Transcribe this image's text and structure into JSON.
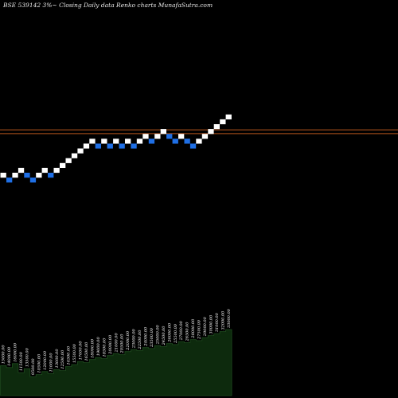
{
  "chart_data": {
    "type": "renko",
    "title": "BSE 539142  3%~  Closing Daily data  Renko  charts MunafaSutra.com",
    "colors": {
      "background": "#000000",
      "up_brick": "#ffffff",
      "down_brick": "#1f6fe5",
      "reference_line": "#b5541c",
      "volume_fill": "#0d2a0d",
      "volume_stroke": "#1e4a1e",
      "volume_label": "#ffffff"
    },
    "reference_lines": [
      {
        "level": 9.34
      },
      {
        "level": 8.57
      }
    ],
    "bricks": [
      {
        "dir": "up",
        "level": 0
      },
      {
        "dir": "down",
        "level": -1
      },
      {
        "dir": "up",
        "level": 0
      },
      {
        "dir": "up",
        "level": 1
      },
      {
        "dir": "down",
        "level": 0
      },
      {
        "dir": "down",
        "level": -1
      },
      {
        "dir": "up",
        "level": 0
      },
      {
        "dir": "up",
        "level": 1
      },
      {
        "dir": "down",
        "level": 0
      },
      {
        "dir": "up",
        "level": 1
      },
      {
        "dir": "up",
        "level": 2
      },
      {
        "dir": "up",
        "level": 3
      },
      {
        "dir": "up",
        "level": 4
      },
      {
        "dir": "up",
        "level": 5
      },
      {
        "dir": "up",
        "level": 6
      },
      {
        "dir": "up",
        "level": 7
      },
      {
        "dir": "down",
        "level": 6
      },
      {
        "dir": "up",
        "level": 7
      },
      {
        "dir": "down",
        "level": 6
      },
      {
        "dir": "up",
        "level": 7
      },
      {
        "dir": "down",
        "level": 6
      },
      {
        "dir": "up",
        "level": 7
      },
      {
        "dir": "down",
        "level": 6
      },
      {
        "dir": "up",
        "level": 7
      },
      {
        "dir": "up",
        "level": 8
      },
      {
        "dir": "down",
        "level": 7
      },
      {
        "dir": "up",
        "level": 8
      },
      {
        "dir": "up",
        "level": 9
      },
      {
        "dir": "down",
        "level": 8
      },
      {
        "dir": "down",
        "level": 7
      },
      {
        "dir": "up",
        "level": 8
      },
      {
        "dir": "down",
        "level": 7
      },
      {
        "dir": "down",
        "level": 6
      },
      {
        "dir": "up",
        "level": 7
      },
      {
        "dir": "up",
        "level": 8
      },
      {
        "dir": "up",
        "level": 9
      },
      {
        "dir": "up",
        "level": 10
      },
      {
        "dir": "up",
        "level": 11
      },
      {
        "dir": "up",
        "level": 12
      }
    ],
    "volume": [
      {
        "value": 15000,
        "label": "15000.00"
      },
      {
        "value": 14000,
        "label": "14000.00"
      },
      {
        "value": 16000,
        "label": "16000.00"
      },
      {
        "value": 11500,
        "label": "11500.00"
      },
      {
        "value": 13500,
        "label": "13500.00"
      },
      {
        "value": 9500,
        "label": "9500.00"
      },
      {
        "value": 10500,
        "label": "10500.00"
      },
      {
        "value": 12000,
        "label": "12000.00"
      },
      {
        "value": 11000,
        "label": "11000.00"
      },
      {
        "value": 13000,
        "label": "13000.00"
      },
      {
        "value": 12500,
        "label": "12500.00"
      },
      {
        "value": 14500,
        "label": "14500.00"
      },
      {
        "value": 15500,
        "label": "15500.00"
      },
      {
        "value": 17000,
        "label": "17000.00"
      },
      {
        "value": 16500,
        "label": "16500.00"
      },
      {
        "value": 18000,
        "label": "18000.00"
      },
      {
        "value": 19000,
        "label": "19000.00"
      },
      {
        "value": 18500,
        "label": "18500.00"
      },
      {
        "value": 20000,
        "label": "20000.00"
      },
      {
        "value": 21000,
        "label": "21000.00"
      },
      {
        "value": 20500,
        "label": "20500.00"
      },
      {
        "value": 22000,
        "label": "22000.00"
      },
      {
        "value": 23000,
        "label": "23000.00"
      },
      {
        "value": 22500,
        "label": "22500.00"
      },
      {
        "value": 24000,
        "label": "24000.00"
      },
      {
        "value": 23500,
        "label": "23500.00"
      },
      {
        "value": 25000,
        "label": "25000.00"
      },
      {
        "value": 24500,
        "label": "24500.00"
      },
      {
        "value": 26000,
        "label": "26000.00"
      },
      {
        "value": 25500,
        "label": "25500.00"
      },
      {
        "value": 27000,
        "label": "27000.00"
      },
      {
        "value": 26500,
        "label": "26500.00"
      },
      {
        "value": 28000,
        "label": "28000.00"
      },
      {
        "value": 27500,
        "label": "27500.00"
      },
      {
        "value": 29000,
        "label": "29000.00"
      },
      {
        "value": 30000,
        "label": "30000.00"
      },
      {
        "value": 31000,
        "label": "31000.00"
      },
      {
        "value": 32000,
        "label": "32000.00"
      },
      {
        "value": 33000,
        "label": "33000.00"
      }
    ]
  }
}
